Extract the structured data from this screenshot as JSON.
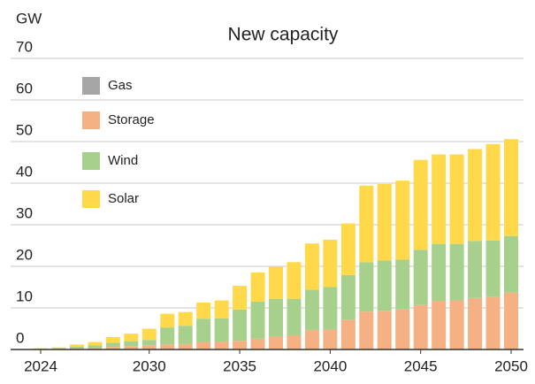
{
  "chart_data": {
    "type": "bar",
    "stacked": true,
    "title": "New capacity",
    "y_axis_label": "GW",
    "categories": [
      "2024",
      null,
      null,
      null,
      null,
      null,
      "2030",
      null,
      null,
      null,
      null,
      "2035",
      null,
      null,
      null,
      null,
      "2040",
      null,
      null,
      null,
      null,
      "2045",
      null,
      null,
      null,
      null,
      "2050"
    ],
    "series": [
      {
        "name": "Gas",
        "color": "#a6a6a6",
        "values": [
          0,
          0,
          0,
          0,
          0,
          0,
          0,
          0,
          0,
          0,
          0,
          0,
          0,
          0,
          0,
          0,
          0,
          0,
          0,
          0,
          0,
          0,
          0,
          0,
          0,
          0,
          0
        ]
      },
      {
        "name": "Storage",
        "color": "#f5b183",
        "values": [
          0.1,
          0.1,
          0.3,
          0.4,
          0.6,
          0.8,
          1,
          1.2,
          1.3,
          1.8,
          1.9,
          2.1,
          2.6,
          3.1,
          3.4,
          4.7,
          4.8,
          7.2,
          9.1,
          9.3,
          9.6,
          10.7,
          11.7,
          11.8,
          12.4,
          12.6,
          13.7
        ]
      },
      {
        "name": "Wind",
        "color": "#a8d08d",
        "values": [
          0.1,
          0.2,
          0.4,
          0.6,
          1,
          1.2,
          1.3,
          4.1,
          4.4,
          5.6,
          5.6,
          7.5,
          8.9,
          9.1,
          8.8,
          9.7,
          10.2,
          10.7,
          11.9,
          12.1,
          12,
          13.3,
          13.7,
          13.6,
          13.7,
          13.6,
          13.6
        ]
      },
      {
        "name": "Solar",
        "color": "#ffd94a",
        "values": [
          0.1,
          0.2,
          0.5,
          0.8,
          1.4,
          1.8,
          2.7,
          3.3,
          3.3,
          3.9,
          4.3,
          5.7,
          7,
          7.8,
          8.8,
          11.1,
          11.4,
          12.4,
          18.4,
          18.4,
          19,
          21.6,
          21.5,
          21.5,
          22.1,
          23.2,
          23.3
        ]
      }
    ],
    "ylim": [
      0,
      70
    ],
    "yticks": [
      0,
      10,
      20,
      30,
      40,
      50,
      60,
      70
    ],
    "grid": true
  }
}
